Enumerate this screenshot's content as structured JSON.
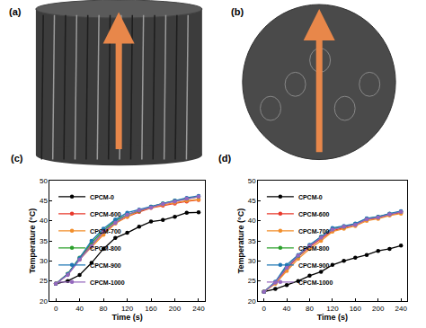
{
  "panels": [
    {
      "label": "(a)"
    },
    {
      "label": "(b)"
    }
  ],
  "chart_data": [
    {
      "type": "line",
      "title": "(c)",
      "x_label": "Time (s)",
      "y_label": "Temperature (°C)",
      "x": [
        0,
        20,
        40,
        60,
        80,
        100,
        120,
        140,
        160,
        180,
        200,
        220,
        240
      ],
      "xlim": [
        -10,
        250
      ],
      "xticks": [
        0,
        40,
        80,
        120,
        160,
        200,
        240
      ],
      "ylim": [
        20,
        50
      ],
      "yticks": [
        20,
        25,
        30,
        35,
        40,
        45,
        50
      ],
      "legend": "upper left",
      "marker": "circle",
      "series": [
        {
          "name": "CPCM-0",
          "color": "#000000",
          "values": [
            24.3,
            25.0,
            26.5,
            29.5,
            33.0,
            35.7,
            37.0,
            38.5,
            39.8,
            40.2,
            41.0,
            42.0,
            42.1
          ]
        },
        {
          "name": "CPCM-600",
          "color": "#e8382b",
          "values": [
            24.3,
            26.7,
            30.5,
            34.0,
            37.0,
            39.5,
            41.0,
            42.2,
            43.2,
            43.8,
            44.3,
            44.8,
            45.2
          ]
        },
        {
          "name": "CPCM-700",
          "color": "#f28e2b",
          "values": [
            24.3,
            26.6,
            30.4,
            33.5,
            36.5,
            39.3,
            41.0,
            42.5,
            43.3,
            44.0,
            44.5,
            45.0,
            45.3
          ]
        },
        {
          "name": "CPCM-800",
          "color": "#2ca02c",
          "values": [
            24.3,
            26.8,
            30.8,
            34.5,
            37.5,
            40.0,
            41.5,
            42.5,
            43.5,
            44.3,
            45.0,
            45.5,
            46.0
          ]
        },
        {
          "name": "CPCM-900",
          "color": "#1f77b4",
          "values": [
            24.3,
            26.7,
            30.7,
            35.0,
            38.0,
            40.3,
            42.0,
            42.8,
            43.5,
            44.3,
            45.0,
            45.7,
            46.2
          ]
        },
        {
          "name": "CPCM-1000",
          "color": "#9467bd",
          "values": [
            24.3,
            26.5,
            30.3,
            33.7,
            37.3,
            39.5,
            41.5,
            42.6,
            43.3,
            44.2,
            44.8,
            45.5,
            46.0
          ]
        }
      ]
    },
    {
      "type": "line",
      "title": "(d)",
      "x_label": "Time (s)",
      "y_label": "Temperature (°C)",
      "x": [
        0,
        20,
        40,
        60,
        80,
        100,
        120,
        140,
        160,
        180,
        200,
        220,
        240
      ],
      "xlim": [
        -10,
        250
      ],
      "xticks": [
        0,
        40,
        80,
        120,
        160,
        200,
        240
      ],
      "ylim": [
        20,
        50
      ],
      "yticks": [
        20,
        25,
        30,
        35,
        40,
        45,
        50
      ],
      "legend": "upper left",
      "marker": "circle",
      "series": [
        {
          "name": "CPCM-0",
          "color": "#000000",
          "values": [
            22.3,
            23.0,
            24.0,
            25.0,
            26.3,
            27.3,
            29.0,
            30.0,
            30.8,
            31.5,
            32.5,
            33.0,
            33.8
          ]
        },
        {
          "name": "CPCM-600",
          "color": "#e8382b",
          "values": [
            22.3,
            24.5,
            28.0,
            31.0,
            33.5,
            35.5,
            37.5,
            38.3,
            39.0,
            40.3,
            40.7,
            41.5,
            42.0
          ]
        },
        {
          "name": "CPCM-700",
          "color": "#f28e2b",
          "values": [
            22.3,
            24.3,
            27.5,
            30.5,
            33.0,
            35.0,
            37.3,
            38.0,
            38.7,
            40.0,
            40.5,
            41.3,
            41.8
          ]
        },
        {
          "name": "CPCM-800",
          "color": "#2ca02c",
          "values": [
            22.3,
            24.7,
            28.5,
            31.2,
            33.8,
            36.0,
            38.0,
            38.5,
            39.2,
            40.5,
            41.0,
            41.7,
            42.3
          ]
        },
        {
          "name": "CPCM-900",
          "color": "#1f77b4",
          "values": [
            22.3,
            24.8,
            29.0,
            31.5,
            34.0,
            36.0,
            38.2,
            38.7,
            39.3,
            40.6,
            41.0,
            41.8,
            42.4
          ]
        },
        {
          "name": "CPCM-1000",
          "color": "#9467bd",
          "values": [
            22.3,
            24.6,
            28.3,
            31.3,
            33.7,
            35.8,
            37.8,
            38.5,
            39.0,
            40.4,
            40.8,
            41.6,
            42.2
          ]
        }
      ]
    }
  ]
}
